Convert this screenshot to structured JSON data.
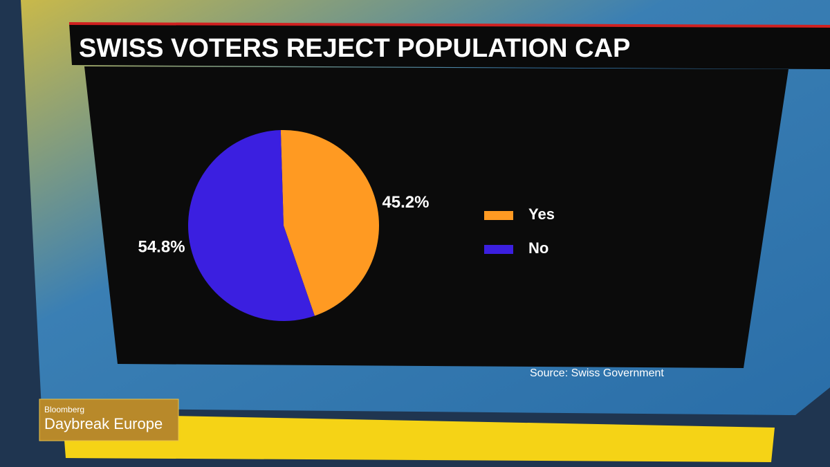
{
  "chart_data": {
    "type": "pie",
    "title": "SWISS VOTERS REJECT POPULATION CAP",
    "categories": [
      "Yes",
      "No"
    ],
    "values": [
      45.2,
      54.8
    ],
    "value_labels": [
      "45.2%",
      "54.8%"
    ],
    "colors": [
      "#ff9a22",
      "#3b1fe0"
    ],
    "source": "Source: Swiss Government"
  },
  "broadcast": {
    "network": "Bloomberg",
    "show": "Daybreak Europe"
  }
}
